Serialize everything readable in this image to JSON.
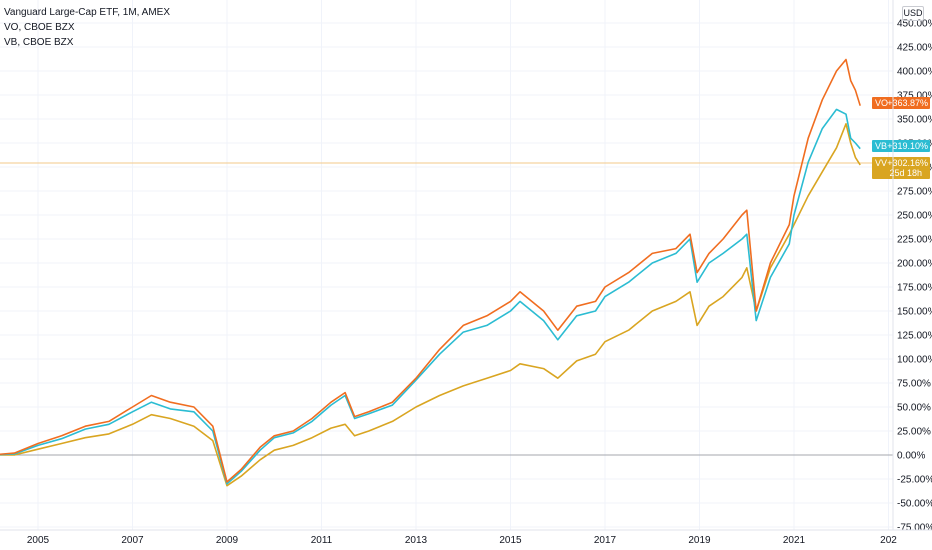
{
  "legend": {
    "title": "Vanguard Large-Cap ETF, 1M, AMEX",
    "line2": "VO, CBOE BZX",
    "line3": "VB, CBOE BZX"
  },
  "currency": "USD",
  "colors": {
    "VO": "#f06d20",
    "VB": "#2bbcd2",
    "VV": "#d9a521",
    "zero": "#a4a7ae",
    "crosshair": "#f3c98a"
  },
  "badges": [
    {
      "symbol": "VO",
      "value": "+363.87%",
      "color": "#f06d20"
    },
    {
      "symbol": "VB",
      "value": "+319.10%",
      "color": "#2bbcd2"
    },
    {
      "symbol": "VV",
      "value": "+302.16%",
      "color": "#d9a521",
      "extra": "25d 18h"
    }
  ],
  "chart_data": {
    "type": "line",
    "y_unit": "%",
    "ylim": [
      -75,
      450
    ],
    "y_ticks": [
      "450.00%",
      "425.00%",
      "400.00%",
      "375.00%",
      "350.00%",
      "325.00%",
      "300.00%",
      "275.00%",
      "250.00%",
      "225.00%",
      "200.00%",
      "175.00%",
      "150.00%",
      "125.00%",
      "100.00%",
      "75.00%",
      "50.00%",
      "25.00%",
      "0.00%",
      "-25.00%",
      "-50.00%",
      "-75.00%"
    ],
    "x_ticks": [
      "2005",
      "2007",
      "2009",
      "2011",
      "2013",
      "2015",
      "2017",
      "2019",
      "2021",
      "202"
    ],
    "series": [
      {
        "name": "VO",
        "points": [
          [
            2004.0,
            0
          ],
          [
            2004.5,
            2
          ],
          [
            2005.0,
            12
          ],
          [
            2005.5,
            20
          ],
          [
            2006.0,
            30
          ],
          [
            2006.5,
            35
          ],
          [
            2007.0,
            50
          ],
          [
            2007.4,
            62
          ],
          [
            2007.8,
            55
          ],
          [
            2008.3,
            50
          ],
          [
            2008.7,
            30
          ],
          [
            2009.0,
            -28
          ],
          [
            2009.3,
            -15
          ],
          [
            2009.7,
            8
          ],
          [
            2010.0,
            20
          ],
          [
            2010.4,
            25
          ],
          [
            2010.8,
            38
          ],
          [
            2011.2,
            55
          ],
          [
            2011.5,
            65
          ],
          [
            2011.7,
            40
          ],
          [
            2012.0,
            45
          ],
          [
            2012.5,
            55
          ],
          [
            2013.0,
            80
          ],
          [
            2013.5,
            110
          ],
          [
            2014.0,
            135
          ],
          [
            2014.5,
            145
          ],
          [
            2015.0,
            160
          ],
          [
            2015.2,
            170
          ],
          [
            2015.7,
            150
          ],
          [
            2016.0,
            130
          ],
          [
            2016.4,
            155
          ],
          [
            2016.8,
            160
          ],
          [
            2017.0,
            175
          ],
          [
            2017.5,
            190
          ],
          [
            2018.0,
            210
          ],
          [
            2018.5,
            215
          ],
          [
            2018.8,
            230
          ],
          [
            2018.95,
            190
          ],
          [
            2019.2,
            210
          ],
          [
            2019.5,
            225
          ],
          [
            2019.9,
            250
          ],
          [
            2020.0,
            255
          ],
          [
            2020.2,
            150
          ],
          [
            2020.5,
            200
          ],
          [
            2020.9,
            240
          ],
          [
            2021.0,
            270
          ],
          [
            2021.3,
            330
          ],
          [
            2021.6,
            370
          ],
          [
            2021.9,
            400
          ],
          [
            2022.1,
            412
          ],
          [
            2022.2,
            390
          ],
          [
            2022.3,
            380
          ],
          [
            2022.4,
            363.87
          ]
        ]
      },
      {
        "name": "VB",
        "points": [
          [
            2004.0,
            0
          ],
          [
            2004.5,
            1
          ],
          [
            2005.0,
            10
          ],
          [
            2005.5,
            17
          ],
          [
            2006.0,
            27
          ],
          [
            2006.5,
            32
          ],
          [
            2007.0,
            45
          ],
          [
            2007.4,
            55
          ],
          [
            2007.8,
            48
          ],
          [
            2008.3,
            45
          ],
          [
            2008.7,
            25
          ],
          [
            2009.0,
            -30
          ],
          [
            2009.3,
            -17
          ],
          [
            2009.7,
            5
          ],
          [
            2010.0,
            18
          ],
          [
            2010.4,
            23
          ],
          [
            2010.8,
            35
          ],
          [
            2011.2,
            52
          ],
          [
            2011.5,
            62
          ],
          [
            2011.7,
            38
          ],
          [
            2012.0,
            43
          ],
          [
            2012.5,
            52
          ],
          [
            2013.0,
            78
          ],
          [
            2013.5,
            105
          ],
          [
            2014.0,
            128
          ],
          [
            2014.5,
            135
          ],
          [
            2015.0,
            150
          ],
          [
            2015.2,
            160
          ],
          [
            2015.7,
            140
          ],
          [
            2016.0,
            120
          ],
          [
            2016.4,
            145
          ],
          [
            2016.8,
            150
          ],
          [
            2017.0,
            165
          ],
          [
            2017.5,
            180
          ],
          [
            2018.0,
            200
          ],
          [
            2018.5,
            210
          ],
          [
            2018.8,
            225
          ],
          [
            2018.95,
            180
          ],
          [
            2019.2,
            200
          ],
          [
            2019.5,
            210
          ],
          [
            2019.9,
            225
          ],
          [
            2020.0,
            230
          ],
          [
            2020.2,
            140
          ],
          [
            2020.5,
            185
          ],
          [
            2020.9,
            220
          ],
          [
            2021.0,
            250
          ],
          [
            2021.3,
            305
          ],
          [
            2021.6,
            340
          ],
          [
            2021.9,
            360
          ],
          [
            2022.1,
            355
          ],
          [
            2022.2,
            330
          ],
          [
            2022.3,
            325
          ],
          [
            2022.4,
            319.1
          ]
        ]
      },
      {
        "name": "VV",
        "points": [
          [
            2004.0,
            0
          ],
          [
            2004.5,
            0
          ],
          [
            2005.0,
            6
          ],
          [
            2005.5,
            12
          ],
          [
            2006.0,
            18
          ],
          [
            2006.5,
            22
          ],
          [
            2007.0,
            32
          ],
          [
            2007.4,
            42
          ],
          [
            2007.8,
            38
          ],
          [
            2008.3,
            30
          ],
          [
            2008.7,
            15
          ],
          [
            2009.0,
            -32
          ],
          [
            2009.3,
            -22
          ],
          [
            2009.7,
            -5
          ],
          [
            2010.0,
            5
          ],
          [
            2010.4,
            10
          ],
          [
            2010.8,
            18
          ],
          [
            2011.2,
            28
          ],
          [
            2011.5,
            32
          ],
          [
            2011.7,
            20
          ],
          [
            2012.0,
            25
          ],
          [
            2012.5,
            35
          ],
          [
            2013.0,
            50
          ],
          [
            2013.5,
            62
          ],
          [
            2014.0,
            72
          ],
          [
            2014.5,
            80
          ],
          [
            2015.0,
            88
          ],
          [
            2015.2,
            95
          ],
          [
            2015.7,
            90
          ],
          [
            2016.0,
            80
          ],
          [
            2016.4,
            98
          ],
          [
            2016.8,
            105
          ],
          [
            2017.0,
            118
          ],
          [
            2017.5,
            130
          ],
          [
            2018.0,
            150
          ],
          [
            2018.5,
            160
          ],
          [
            2018.8,
            170
          ],
          [
            2018.95,
            135
          ],
          [
            2019.2,
            155
          ],
          [
            2019.5,
            165
          ],
          [
            2019.9,
            185
          ],
          [
            2020.0,
            195
          ],
          [
            2020.2,
            150
          ],
          [
            2020.5,
            195
          ],
          [
            2020.9,
            230
          ],
          [
            2021.0,
            240
          ],
          [
            2021.3,
            270
          ],
          [
            2021.6,
            295
          ],
          [
            2021.9,
            320
          ],
          [
            2022.1,
            345
          ],
          [
            2022.2,
            325
          ],
          [
            2022.3,
            310
          ],
          [
            2022.4,
            302.16
          ]
        ]
      }
    ]
  }
}
